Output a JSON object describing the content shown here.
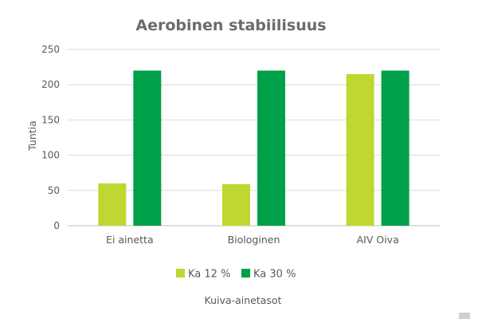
{
  "chart_data": {
    "type": "bar",
    "title": "Aerobinen stabiilisuus",
    "xlabel": "Kuiva-ainetasot",
    "ylabel": "Tuntia",
    "categories": [
      "Ei ainetta",
      "Biologinen",
      "AIV Oiva"
    ],
    "series": [
      {
        "name": "Ka 12 %",
        "color": "#bfd730",
        "values": [
          60,
          59,
          215
        ]
      },
      {
        "name": "Ka 30 %",
        "color": "#00a04a",
        "values": [
          220,
          220,
          220
        ]
      }
    ],
    "ylim": [
      0,
      250
    ],
    "yticks": [
      0,
      50,
      100,
      150,
      200,
      250
    ],
    "grid": true,
    "legend": "bottom"
  }
}
